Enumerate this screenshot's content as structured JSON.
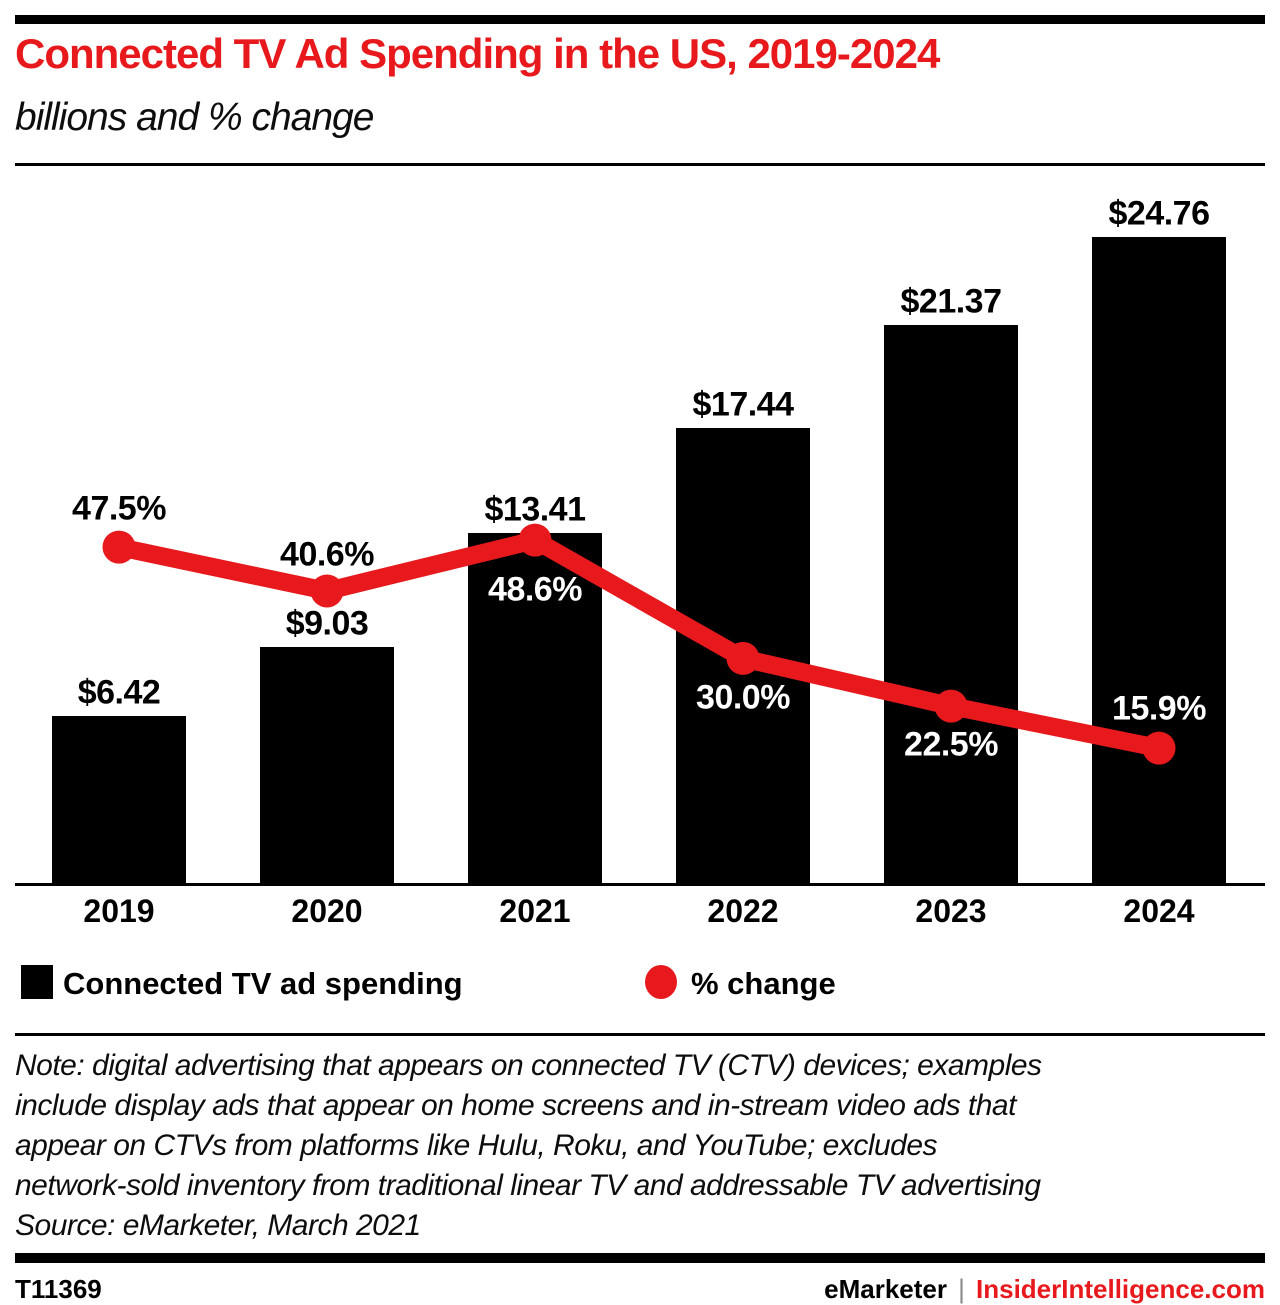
{
  "header": {
    "title": "Connected TV Ad Spending in the US, 2019-2024",
    "subtitle": "billions and % change"
  },
  "chart_data": {
    "type": "bar",
    "title": "Connected TV Ad Spending in the US, 2019-2024",
    "subtitle": "billions and % change",
    "categories": [
      "2019",
      "2020",
      "2021",
      "2022",
      "2023",
      "2024"
    ],
    "series": [
      {
        "name": "Connected TV ad spending",
        "chart_type": "bar",
        "unit": "USD billions",
        "values": [
          6.42,
          9.03,
          13.41,
          17.44,
          21.37,
          24.76
        ],
        "data_labels": [
          "$6.42",
          "$9.03",
          "$13.41",
          "$17.44",
          "$21.37",
          "$24.76"
        ],
        "color": "#000000"
      },
      {
        "name": "% change",
        "chart_type": "line",
        "unit": "percent",
        "values": [
          47.5,
          40.6,
          48.6,
          30.0,
          22.5,
          15.9
        ],
        "data_labels": [
          "47.5%",
          "40.6%",
          "48.6%",
          "30.0%",
          "22.5%",
          "15.9%"
        ],
        "color": "#e8191c"
      }
    ],
    "legend_position": "bottom",
    "grid": false,
    "y_axis_visible": false
  },
  "legend": {
    "items": [
      {
        "label": "Connected TV ad spending",
        "marker": "square",
        "color": "#000000"
      },
      {
        "label": "% change",
        "marker": "circle",
        "color": "#e8191c"
      }
    ]
  },
  "note": {
    "lines": [
      "Note: digital advertising that appears on connected TV (CTV) devices; examples",
      "include display ads that appear on home screens and in-stream video ads that",
      "appear on CTVs from platforms like Hulu, Roku, and YouTube; excludes",
      "network-sold inventory from traditional linear TV and addressable TV advertising",
      "Source: eMarketer, March 2021"
    ]
  },
  "footer": {
    "chart_id": "T11369",
    "brand": "eMarketer",
    "separator": "|",
    "site": "InsiderIntelligence.com"
  },
  "colors": {
    "accent_red": "#e8191c",
    "bar_black": "#000000"
  }
}
